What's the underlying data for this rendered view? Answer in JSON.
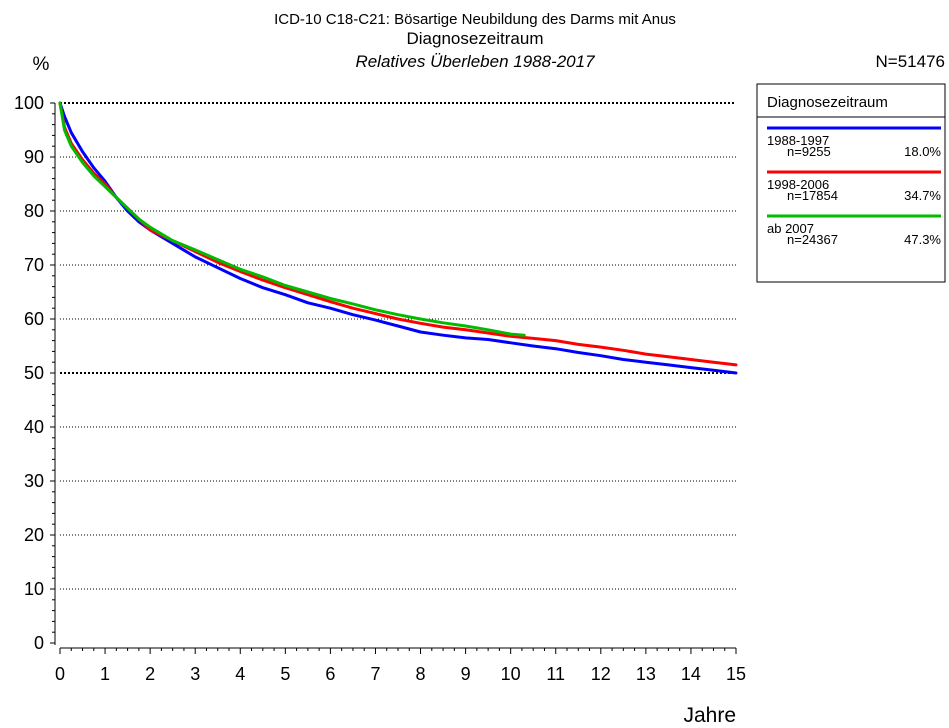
{
  "chart_data": {
    "type": "line",
    "title": "ICD-10 C18-C21: Bösartige Neubildung des Darms mit Anus",
    "subtitle": "Diagnosezeitraum",
    "subtitle2": "Relatives Überleben 1988-2017",
    "ylabel": "%",
    "xlabel": "Jahre",
    "total_n": "N=51476",
    "xlim": [
      0,
      15
    ],
    "ylim": [
      0,
      100
    ],
    "x_ticks": [
      "0",
      "1",
      "2",
      "3",
      "4",
      "5",
      "6",
      "7",
      "8",
      "9",
      "10",
      "11",
      "12",
      "13",
      "14",
      "15"
    ],
    "y_ticks": [
      "0",
      "10",
      "20",
      "30",
      "40",
      "50",
      "60",
      "70",
      "80",
      "90",
      "100"
    ],
    "grid": "horizontal dotted",
    "legend": {
      "title": "Diagnosezeitraum",
      "placement": "right",
      "entries": [
        {
          "range": "1988-1997",
          "n": "n=9255",
          "pct": "18.0%",
          "color": "#0000ff"
        },
        {
          "range": "1998-2006",
          "n": "n=17854",
          "pct": "34.7%",
          "color": "#ff0000"
        },
        {
          "range": "ab 2007",
          "n": "n=24367",
          "pct": "47.3%",
          "color": "#00bb00"
        }
      ]
    },
    "series": [
      {
        "name": "1988-1997",
        "color": "#0000ff",
        "x": [
          0,
          0.1,
          0.25,
          0.5,
          0.75,
          1,
          1.25,
          1.5,
          1.75,
          2,
          2.5,
          3,
          3.5,
          4,
          4.5,
          5,
          5.5,
          6,
          6.5,
          7,
          7.5,
          8,
          8.5,
          9,
          9.5,
          10,
          10.5,
          11,
          11.5,
          12,
          12.5,
          13,
          13.5,
          14,
          14.5,
          15
        ],
        "values": [
          100,
          97.5,
          94.5,
          91,
          88,
          85.5,
          82.5,
          80,
          78,
          76.5,
          74,
          71.5,
          69.5,
          67.5,
          65.8,
          64.5,
          63,
          62,
          60.8,
          59.8,
          58.7,
          57.6,
          57,
          56.5,
          56.2,
          55.6,
          55,
          54.5,
          53.8,
          53.2,
          52.5,
          52,
          51.5,
          51,
          50.5,
          50
        ]
      },
      {
        "name": "1998-2006",
        "color": "#ff0000",
        "x": [
          0,
          0.1,
          0.25,
          0.5,
          0.75,
          1,
          1.25,
          1.5,
          1.75,
          2,
          2.5,
          3,
          3.5,
          4,
          4.5,
          5,
          5.5,
          6,
          6.5,
          7,
          7.5,
          8,
          8.5,
          9,
          9.5,
          10,
          10.5,
          11,
          11.5,
          12,
          12.5,
          13,
          13.5,
          14,
          14.5,
          15
        ],
        "values": [
          100,
          95.5,
          92.5,
          89.5,
          87,
          85,
          82.5,
          80.5,
          78.5,
          76.5,
          74.5,
          72.5,
          70.5,
          68.8,
          67.2,
          65.8,
          64.5,
          63.2,
          62,
          61,
          60,
          59.2,
          58.5,
          58,
          57.4,
          56.8,
          56.4,
          56,
          55.3,
          54.8,
          54.2,
          53.5,
          53,
          52.5,
          52,
          51.5
        ]
      },
      {
        "name": "ab 2007",
        "color": "#00bb00",
        "x": [
          0,
          0.1,
          0.25,
          0.5,
          0.75,
          1,
          1.25,
          1.5,
          1.75,
          2,
          2.5,
          3,
          3.5,
          4,
          4.5,
          5,
          5.5,
          6,
          6.5,
          7,
          7.5,
          8,
          8.5,
          9,
          9.5,
          10,
          10.3
        ],
        "values": [
          100,
          95,
          92,
          89,
          86.5,
          84.5,
          82.5,
          80.5,
          78.5,
          77,
          74.5,
          72.8,
          71,
          69.2,
          67.8,
          66.2,
          65,
          63.8,
          62.8,
          61.7,
          60.8,
          60,
          59.3,
          58.7,
          58,
          57.2,
          57
        ]
      }
    ]
  }
}
